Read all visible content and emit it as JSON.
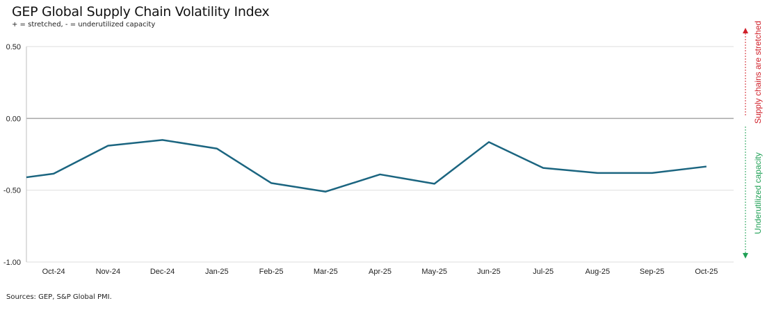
{
  "chart_data": {
    "type": "line",
    "title": "GEP Global Supply Chain Volatility Index",
    "subtitle": "+ = stretched, - = underutilized capacity",
    "source": "Sources: GEP, S&P Global PMI.",
    "categories": [
      "Oct-24",
      "Nov-24",
      "Dec-24",
      "Jan-25",
      "Feb-25",
      "Mar-25",
      "Apr-25",
      "May-25",
      "Jun-25",
      "Jul-25",
      "Aug-25",
      "Sep-25",
      "Oct-25"
    ],
    "left_edge_value": -0.41,
    "values": [
      -0.385,
      -0.19,
      -0.15,
      -0.21,
      -0.45,
      -0.51,
      -0.39,
      -0.455,
      -0.165,
      -0.345,
      -0.38,
      -0.38,
      -0.335
    ],
    "ylim": [
      -1.0,
      0.5
    ],
    "yticks": [
      "0.50",
      "0.00",
      "-0.50",
      "-1.00"
    ],
    "ytick_values": [
      0.5,
      0.0,
      -0.5,
      -1.0
    ],
    "grid": true,
    "line_color": "#1b6580",
    "annotations": {
      "up": {
        "text": "Supply chains are stretched",
        "color": "#d0202a"
      },
      "down": {
        "text": "Underutilized capacity",
        "color": "#1fa055"
      }
    }
  }
}
